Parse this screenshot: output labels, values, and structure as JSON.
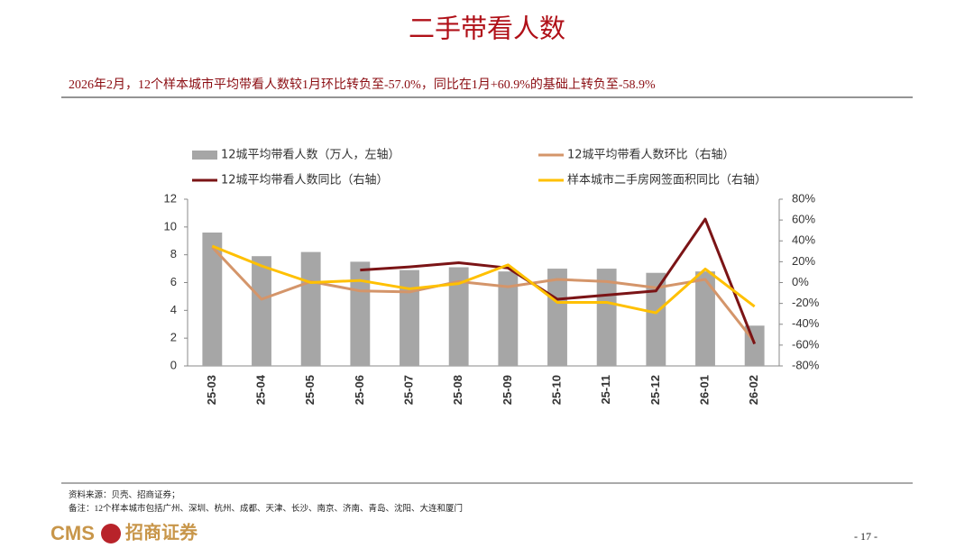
{
  "page": {
    "title": "二手带看人数",
    "subtitle": "2026年2月，12个样本城市平均带看人数较1月环比转负至-57.0%，同比在1月+60.9%的基础上转负至-58.9%",
    "source": "资料来源：贝壳、招商证券；",
    "note": "备注：12个样本城市包括广州、深圳、杭州、成都、天津、长沙、南京、济南、青岛、沈阳、大连和厦门",
    "logo_text": "CMS",
    "logo_name": "招商证券",
    "page_number": "- 17 -"
  },
  "chart_data": {
    "type": "bar-line",
    "categories": [
      "25-03",
      "25-04",
      "25-05",
      "25-06",
      "25-07",
      "25-08",
      "25-09",
      "25-10",
      "25-11",
      "25-12",
      "26-01",
      "26-02"
    ],
    "series": [
      {
        "name": "12城平均带看人数（万人，左轴）",
        "type": "bar",
        "color": "#a6a6a6",
        "values": [
          9.6,
          7.9,
          8.2,
          7.5,
          6.9,
          7.1,
          6.8,
          7.0,
          7.0,
          6.7,
          6.8,
          2.9
        ]
      },
      {
        "name": "12城平均带看人数环比（右轴）",
        "type": "line",
        "axis": "y2",
        "color": "#d4956a",
        "values": [
          34,
          -16,
          1,
          -8,
          -9,
          1,
          -4,
          3,
          1,
          -5,
          3,
          -57.0
        ]
      },
      {
        "name": "12城平均带看人数同比（右轴）",
        "type": "line",
        "axis": "y2",
        "color": "#7b1416",
        "values": [
          null,
          null,
          null,
          12,
          15,
          19,
          14,
          -16,
          -12,
          -8,
          60.9,
          -58.9
        ]
      },
      {
        "name": "样本城市二手房网签面积同比（右轴）",
        "type": "line",
        "axis": "y2",
        "color": "#ffc000",
        "values": [
          35,
          16,
          0,
          2,
          -6,
          -1,
          17,
          -19,
          -19,
          -29,
          13,
          -23
        ]
      }
    ],
    "ylim": [
      0,
      12
    ],
    "yticks": [
      0,
      2,
      4,
      6,
      8,
      10,
      12
    ],
    "y2lim": [
      -80,
      80
    ],
    "y2ticks": [
      {
        "value": -80,
        "label": "-80%"
      },
      {
        "value": -60,
        "label": "-60%"
      },
      {
        "value": -40,
        "label": "-40%"
      },
      {
        "value": -20,
        "label": "-20%"
      },
      {
        "value": 0,
        "label": "0%"
      },
      {
        "value": 20,
        "label": "20%"
      },
      {
        "value": 40,
        "label": "40%"
      },
      {
        "value": 60,
        "label": "60%"
      },
      {
        "value": 80,
        "label": "80%"
      }
    ]
  }
}
